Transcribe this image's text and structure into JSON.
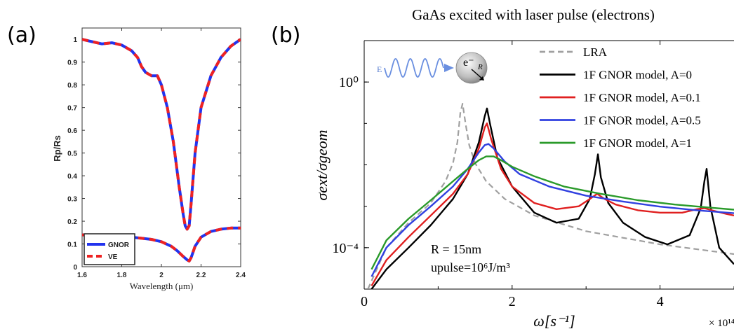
{
  "figure": {
    "panel_a_label": "(a)",
    "panel_b_label": "(b)"
  },
  "chart_data": [
    {
      "type": "line",
      "panel": "(a)",
      "title": "",
      "xlabel": "Wavelength (μm)",
      "ylabel": "Rp/Rs",
      "xlim": [
        1.6,
        2.4
      ],
      "ylim": [
        0,
        1.05
      ],
      "xticks": [
        "1.6",
        "1.8",
        "2",
        "2.2",
        "2.4"
      ],
      "yticks": [
        "0",
        "0.1",
        "0.2",
        "0.3",
        "0.4",
        "0.5",
        "0.6",
        "0.7",
        "0.8",
        "0.9",
        "1"
      ],
      "grid": false,
      "legend": "bottom-left",
      "series": [
        {
          "name": "GNOR",
          "color": "#2233ee",
          "style": "solid",
          "curves": [
            {
              "x": [
                1.6,
                1.65,
                1.7,
                1.75,
                1.8,
                1.85,
                1.88,
                1.9,
                1.92,
                1.95,
                1.98,
                2.0,
                2.03,
                2.06,
                2.09,
                2.11,
                2.12,
                2.13,
                2.14,
                2.15,
                2.17,
                2.2,
                2.25,
                2.3,
                2.35,
                2.4
              ],
              "y": [
                1.0,
                0.99,
                0.98,
                0.985,
                0.975,
                0.95,
                0.92,
                0.88,
                0.855,
                0.84,
                0.84,
                0.8,
                0.7,
                0.55,
                0.35,
                0.23,
                0.18,
                0.165,
                0.18,
                0.28,
                0.5,
                0.7,
                0.84,
                0.92,
                0.97,
                1.0
              ]
            },
            {
              "x": [
                1.6,
                1.7,
                1.8,
                1.85,
                1.9,
                1.95,
                2.0,
                2.05,
                2.08,
                2.11,
                2.13,
                2.14,
                2.15,
                2.17,
                2.2,
                2.25,
                2.3,
                2.35,
                2.4
              ],
              "y": [
                0.14,
                0.135,
                0.13,
                0.13,
                0.125,
                0.12,
                0.11,
                0.09,
                0.07,
                0.045,
                0.03,
                0.025,
                0.04,
                0.09,
                0.13,
                0.155,
                0.165,
                0.17,
                0.17
              ]
            }
          ]
        },
        {
          "name": "VE",
          "color": "#ee2222",
          "style": "dashed",
          "curves": [
            {
              "x": [
                1.6,
                1.65,
                1.7,
                1.75,
                1.8,
                1.85,
                1.88,
                1.9,
                1.92,
                1.95,
                1.98,
                2.0,
                2.03,
                2.06,
                2.09,
                2.11,
                2.12,
                2.13,
                2.14,
                2.15,
                2.17,
                2.2,
                2.25,
                2.3,
                2.35,
                2.4
              ],
              "y": [
                1.0,
                0.99,
                0.98,
                0.985,
                0.975,
                0.95,
                0.92,
                0.88,
                0.855,
                0.84,
                0.84,
                0.8,
                0.7,
                0.55,
                0.35,
                0.23,
                0.18,
                0.165,
                0.18,
                0.28,
                0.5,
                0.7,
                0.84,
                0.92,
                0.97,
                1.0
              ]
            },
            {
              "x": [
                1.6,
                1.7,
                1.8,
                1.85,
                1.9,
                1.95,
                2.0,
                2.05,
                2.08,
                2.11,
                2.13,
                2.14,
                2.15,
                2.17,
                2.2,
                2.25,
                2.3,
                2.35,
                2.4
              ],
              "y": [
                0.14,
                0.135,
                0.13,
                0.13,
                0.125,
                0.12,
                0.11,
                0.09,
                0.07,
                0.045,
                0.03,
                0.025,
                0.04,
                0.09,
                0.13,
                0.155,
                0.165,
                0.17,
                0.17
              ]
            }
          ]
        }
      ]
    },
    {
      "type": "line",
      "panel": "(b)",
      "title": "GaAs excited with laser pulse (electrons)",
      "xlabel": "ω[s⁻¹]",
      "ylabel": "σext/σgeom",
      "x_multiplier": "× 10¹⁴",
      "xlim": [
        0,
        5
      ],
      "ylim": [
        1e-05,
        10
      ],
      "yscale": "log",
      "xticks": [
        "0",
        "2",
        "4"
      ],
      "yticks": [
        "10⁻⁴",
        "10⁰"
      ],
      "grid": false,
      "legend": "top-right",
      "annotations": [
        "R = 15nm",
        "upulse=10⁶J/m³"
      ],
      "inset": {
        "field_label": "E",
        "particle_label": "e⁻",
        "radius_label": "R"
      },
      "series": [
        {
          "name": "LRA",
          "color": "#a0a0a0",
          "style": "dashed",
          "x": [
            0.05,
            0.3,
            0.6,
            0.9,
            1.1,
            1.2,
            1.26,
            1.3,
            1.33,
            1.37,
            1.42,
            1.5,
            1.65,
            1.9,
            2.3,
            3.0,
            4.0,
            5.0
          ],
          "y": [
            1e-05,
            0.0001,
            0.0004,
            0.0012,
            0.004,
            0.011,
            0.035,
            0.18,
            0.3,
            0.1,
            0.03,
            0.011,
            0.004,
            0.0015,
            0.0006,
            0.00025,
            0.00012,
            7e-05
          ]
        },
        {
          "name": "1F GNOR model, A=0",
          "color": "#000000",
          "style": "solid",
          "x": [
            0.1,
            0.3,
            0.6,
            0.9,
            1.2,
            1.4,
            1.55,
            1.63,
            1.66,
            1.7,
            1.8,
            2.0,
            2.3,
            2.6,
            2.9,
            3.05,
            3.12,
            3.16,
            3.2,
            3.3,
            3.5,
            3.8,
            4.1,
            4.4,
            4.55,
            4.6,
            4.63,
            4.68,
            4.8,
            5.0
          ],
          "y": [
            1e-05,
            3e-05,
            0.0001,
            0.00035,
            0.0015,
            0.006,
            0.035,
            0.15,
            0.23,
            0.1,
            0.015,
            0.003,
            0.0007,
            0.0004,
            0.0005,
            0.0015,
            0.006,
            0.018,
            0.005,
            0.0012,
            0.0004,
            0.00018,
            0.00012,
            0.0002,
            0.0009,
            0.004,
            0.008,
            0.001,
            0.0001,
            4e-05
          ]
        },
        {
          "name": "1F GNOR model, A=0.1",
          "color": "#e02020",
          "style": "solid",
          "x": [
            0.1,
            0.3,
            0.6,
            0.9,
            1.2,
            1.4,
            1.55,
            1.63,
            1.66,
            1.72,
            1.85,
            2.0,
            2.3,
            2.6,
            2.9,
            3.05,
            3.15,
            3.25,
            3.4,
            3.7,
            4.0,
            4.3,
            4.5,
            4.6,
            4.7,
            4.9,
            5.0
          ],
          "y": [
            1.2e-05,
            5e-05,
            0.00018,
            0.0006,
            0.002,
            0.006,
            0.025,
            0.08,
            0.1,
            0.04,
            0.008,
            0.003,
            0.0012,
            0.00085,
            0.001,
            0.0015,
            0.002,
            0.0015,
            0.0011,
            0.0008,
            0.0007,
            0.0007,
            0.00085,
            0.0009,
            0.0008,
            0.00065,
            0.0006
          ]
        },
        {
          "name": "1F GNOR model, A=0.5",
          "color": "#3040e0",
          "style": "solid",
          "x": [
            0.1,
            0.3,
            0.6,
            0.9,
            1.2,
            1.4,
            1.55,
            1.63,
            1.68,
            1.75,
            1.9,
            2.1,
            2.5,
            3.0,
            3.5,
            4.0,
            4.5,
            5.0
          ],
          "y": [
            2e-05,
            0.0001,
            0.00035,
            0.001,
            0.003,
            0.008,
            0.02,
            0.03,
            0.032,
            0.025,
            0.012,
            0.006,
            0.003,
            0.0018,
            0.0013,
            0.00098,
            0.0008,
            0.00068
          ]
        },
        {
          "name": "1F GNOR model, A=1",
          "color": "#2a9a2a",
          "style": "solid",
          "x": [
            0.1,
            0.3,
            0.6,
            0.9,
            1.2,
            1.4,
            1.55,
            1.65,
            1.75,
            1.85,
            2.0,
            2.3,
            2.7,
            3.2,
            3.7,
            4.2,
            4.7,
            5.0
          ],
          "y": [
            3e-05,
            0.00015,
            0.0005,
            0.0014,
            0.004,
            0.008,
            0.013,
            0.016,
            0.016,
            0.013,
            0.009,
            0.0053,
            0.003,
            0.002,
            0.0014,
            0.0011,
            0.00092,
            0.00083
          ]
        }
      ]
    }
  ]
}
